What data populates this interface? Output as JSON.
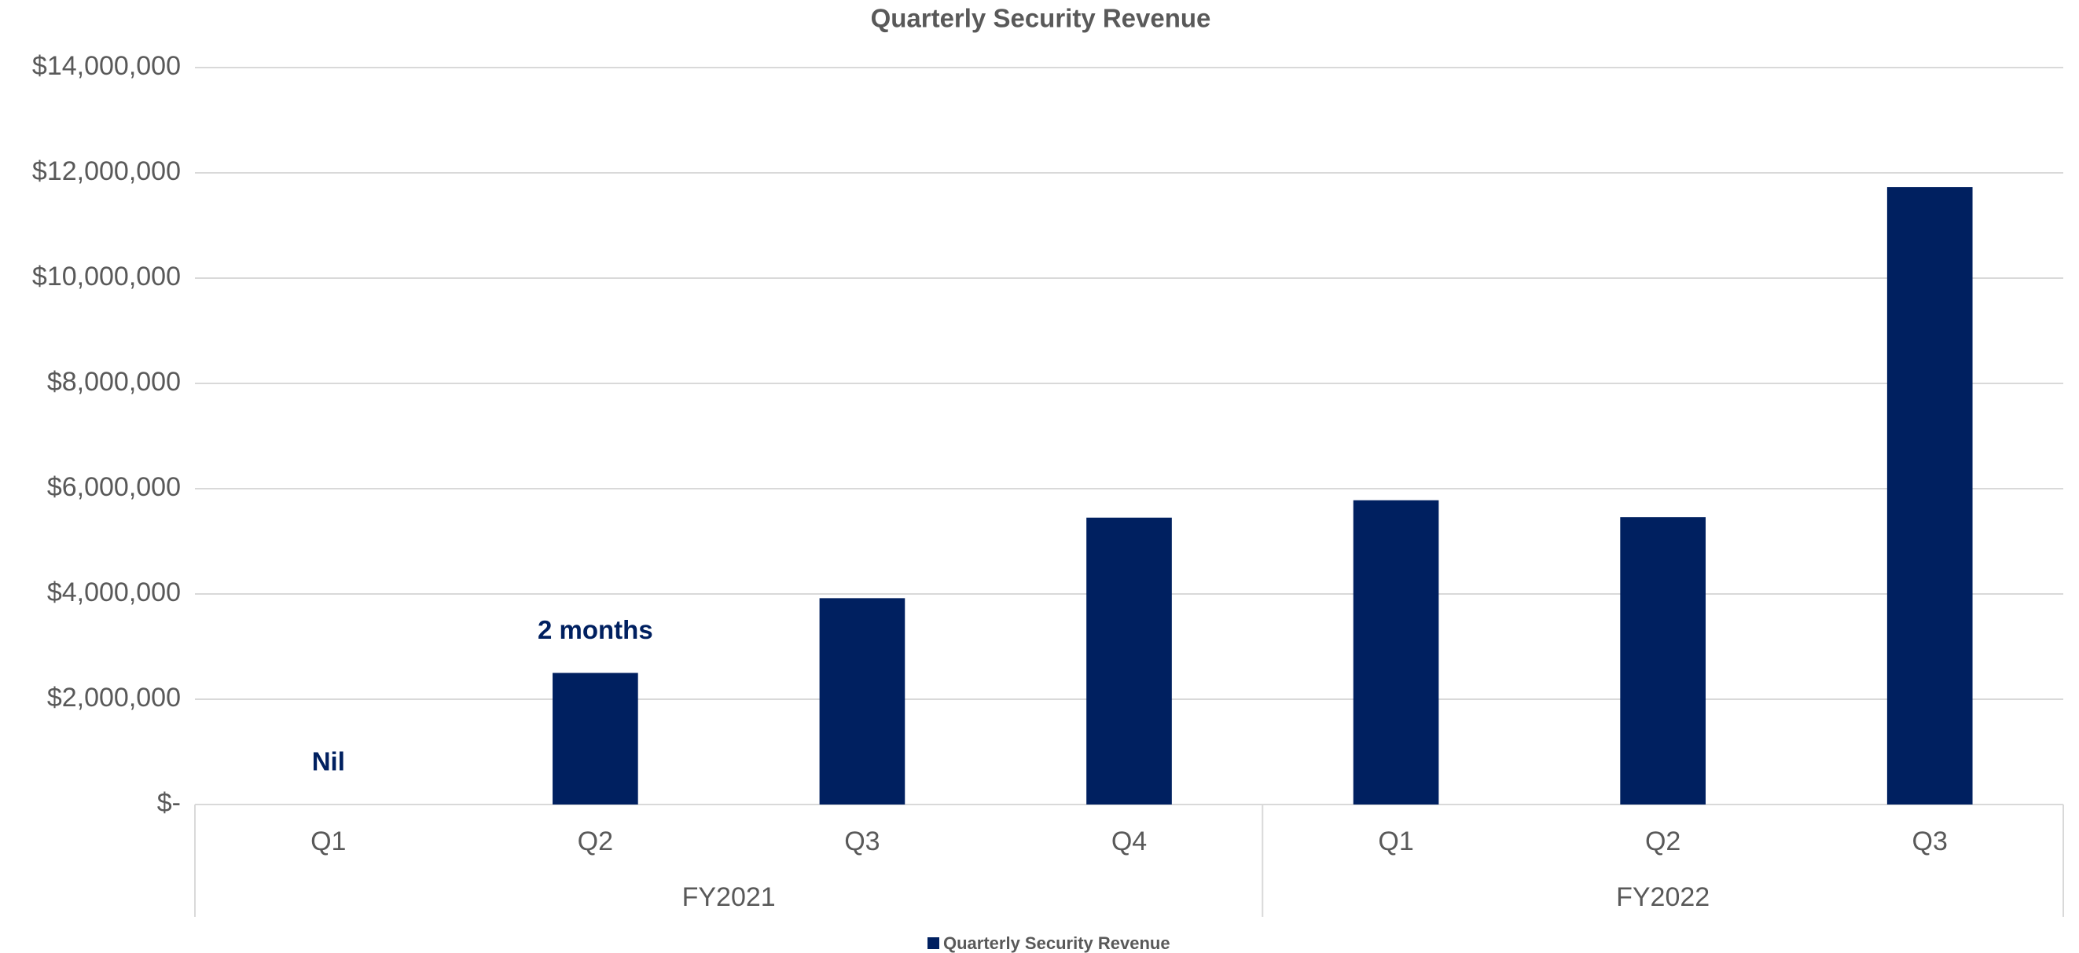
{
  "chart_data": {
    "type": "bar",
    "title": "Quarterly Security Revenue",
    "categories": [
      "Q1",
      "Q2",
      "Q3",
      "Q4",
      "Q1",
      "Q2",
      "Q3"
    ],
    "groups": [
      {
        "name": "FY2021",
        "size": 4
      },
      {
        "name": "FY2022",
        "size": 3
      }
    ],
    "series": [
      {
        "name": "Quarterly Security Revenue",
        "color": "#002060",
        "values": [
          0,
          2500000,
          3920000,
          5450000,
          5780000,
          5460000,
          11730000
        ]
      }
    ],
    "annotations": [
      "Nil",
      "2 months",
      null,
      null,
      null,
      null,
      null
    ],
    "ylim": [
      0,
      14000000
    ],
    "yticks": [
      {
        "value": 0,
        "label": "$-"
      },
      {
        "value": 2000000,
        "label": "$2,000,000"
      },
      {
        "value": 4000000,
        "label": "$4,000,000"
      },
      {
        "value": 6000000,
        "label": "$6,000,000"
      },
      {
        "value": 8000000,
        "label": "$8,000,000"
      },
      {
        "value": 10000000,
        "label": "$10,000,000"
      },
      {
        "value": 12000000,
        "label": "$12,000,000"
      },
      {
        "value": 14000000,
        "label": "$14,000,000"
      }
    ],
    "grid": true,
    "legend": "bottom"
  }
}
